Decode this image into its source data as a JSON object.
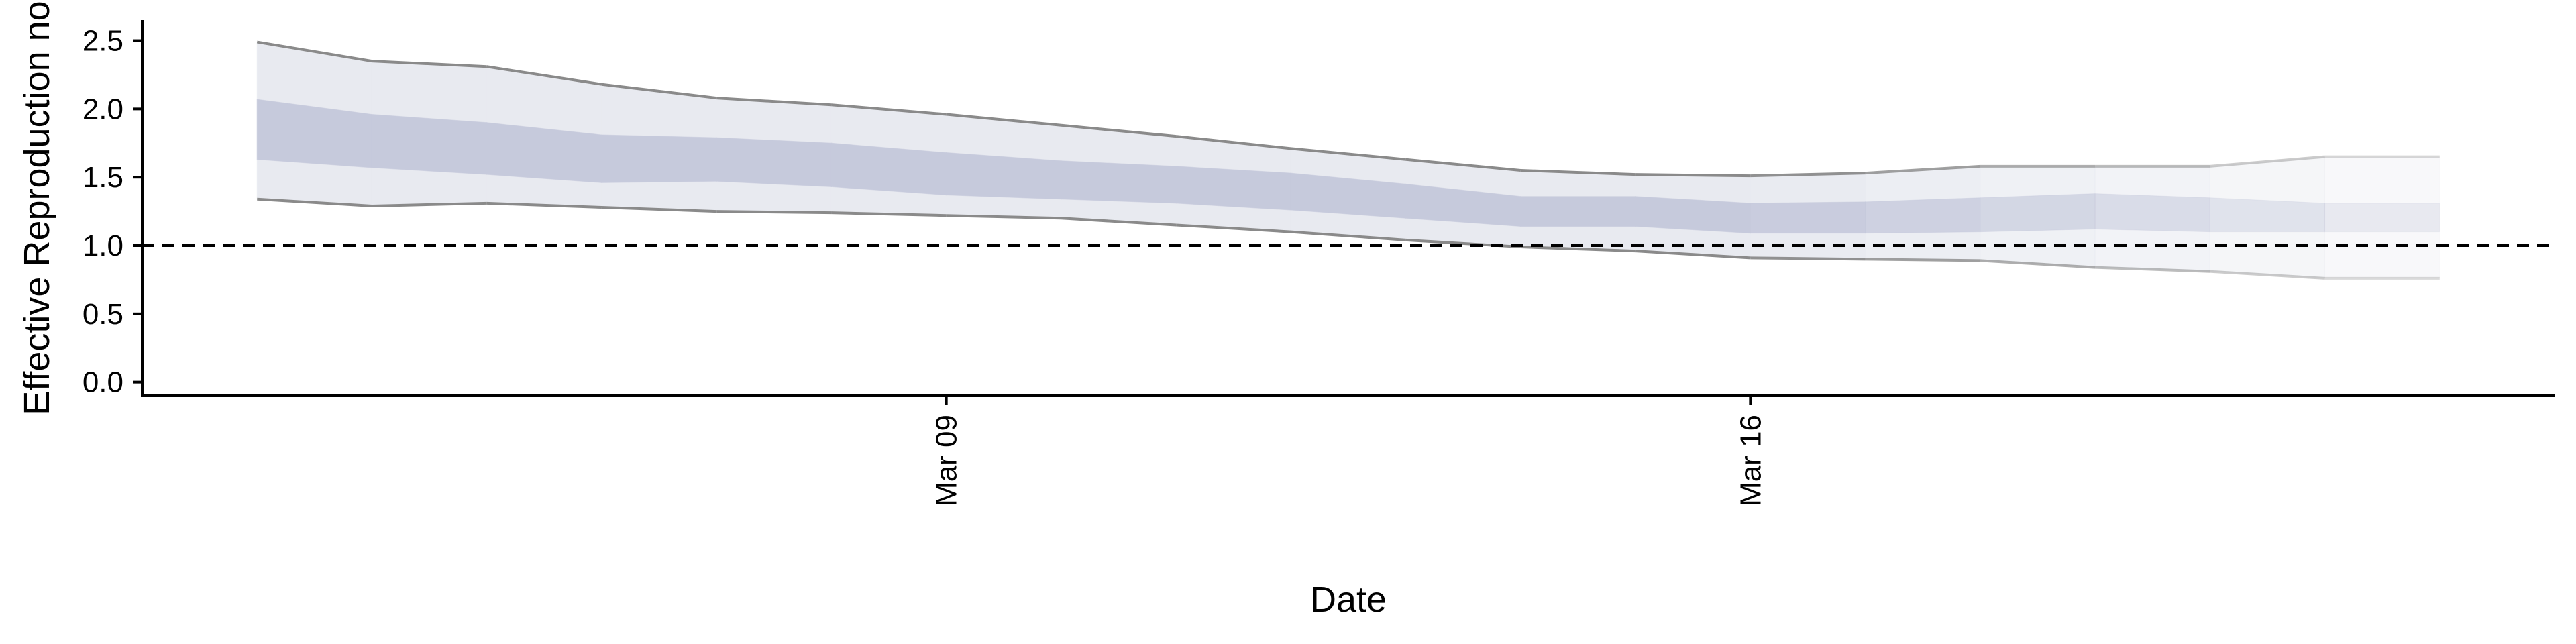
{
  "chart_data": {
    "type": "area",
    "title": "",
    "xlabel": "Date",
    "ylabel": "Effective Reproduction no",
    "x": [
      "2020-03-03",
      "2020-03-04",
      "2020-03-05",
      "2020-03-06",
      "2020-03-07",
      "2020-03-08",
      "2020-03-09",
      "2020-03-10",
      "2020-03-11",
      "2020-03-12",
      "2020-03-13",
      "2020-03-14",
      "2020-03-15",
      "2020-03-16",
      "2020-03-17",
      "2020-03-18",
      "2020-03-19",
      "2020-03-20",
      "2020-03-21",
      "2020-03-22"
    ],
    "xticks": [
      {
        "date": "2020-03-09",
        "label": "Mar 09"
      },
      {
        "date": "2020-03-16",
        "label": "Mar 16"
      }
    ],
    "xlim": [
      "2020-03-02",
      "2020-03-23"
    ],
    "ylim": [
      -0.1,
      2.65
    ],
    "yticks": [
      0.0,
      0.5,
      1.0,
      1.5,
      2.0,
      2.5
    ],
    "ytick_labels": [
      "0.0",
      "0.5",
      "1.0",
      "1.5",
      "2.0",
      "2.5"
    ],
    "reference_line": {
      "y": 1.0,
      "style": "dashed"
    },
    "series": [
      {
        "role": "interval_90",
        "lower": [
          1.34,
          1.29,
          1.31,
          1.28,
          1.25,
          1.24,
          1.22,
          1.2,
          1.15,
          1.1,
          1.04,
          0.99,
          0.96,
          0.91,
          0.9,
          0.89,
          0.84,
          0.81,
          0.76,
          0.76
        ],
        "upper": [
          2.49,
          2.35,
          2.31,
          2.18,
          2.08,
          2.03,
          1.96,
          1.88,
          1.8,
          1.71,
          1.63,
          1.55,
          1.52,
          1.51,
          1.53,
          1.58,
          1.58,
          1.58,
          1.65,
          1.65
        ]
      },
      {
        "role": "interval_50",
        "lower": [
          1.63,
          1.57,
          1.52,
          1.46,
          1.47,
          1.43,
          1.37,
          1.34,
          1.31,
          1.26,
          1.2,
          1.14,
          1.14,
          1.09,
          1.09,
          1.1,
          1.12,
          1.1,
          1.1,
          1.1
        ],
        "upper": [
          2.07,
          1.96,
          1.9,
          1.81,
          1.79,
          1.75,
          1.68,
          1.62,
          1.58,
          1.53,
          1.45,
          1.36,
          1.36,
          1.31,
          1.32,
          1.35,
          1.38,
          1.35,
          1.31,
          1.31
        ]
      }
    ],
    "colors": {
      "outer_band": "#e8eaf0",
      "inner_band": "#c6cadc",
      "band_edge": "#8a8a8a",
      "reference_line": "#000000"
    },
    "fade_from_date": "2020-03-16",
    "grid": false,
    "legend": "none"
  }
}
